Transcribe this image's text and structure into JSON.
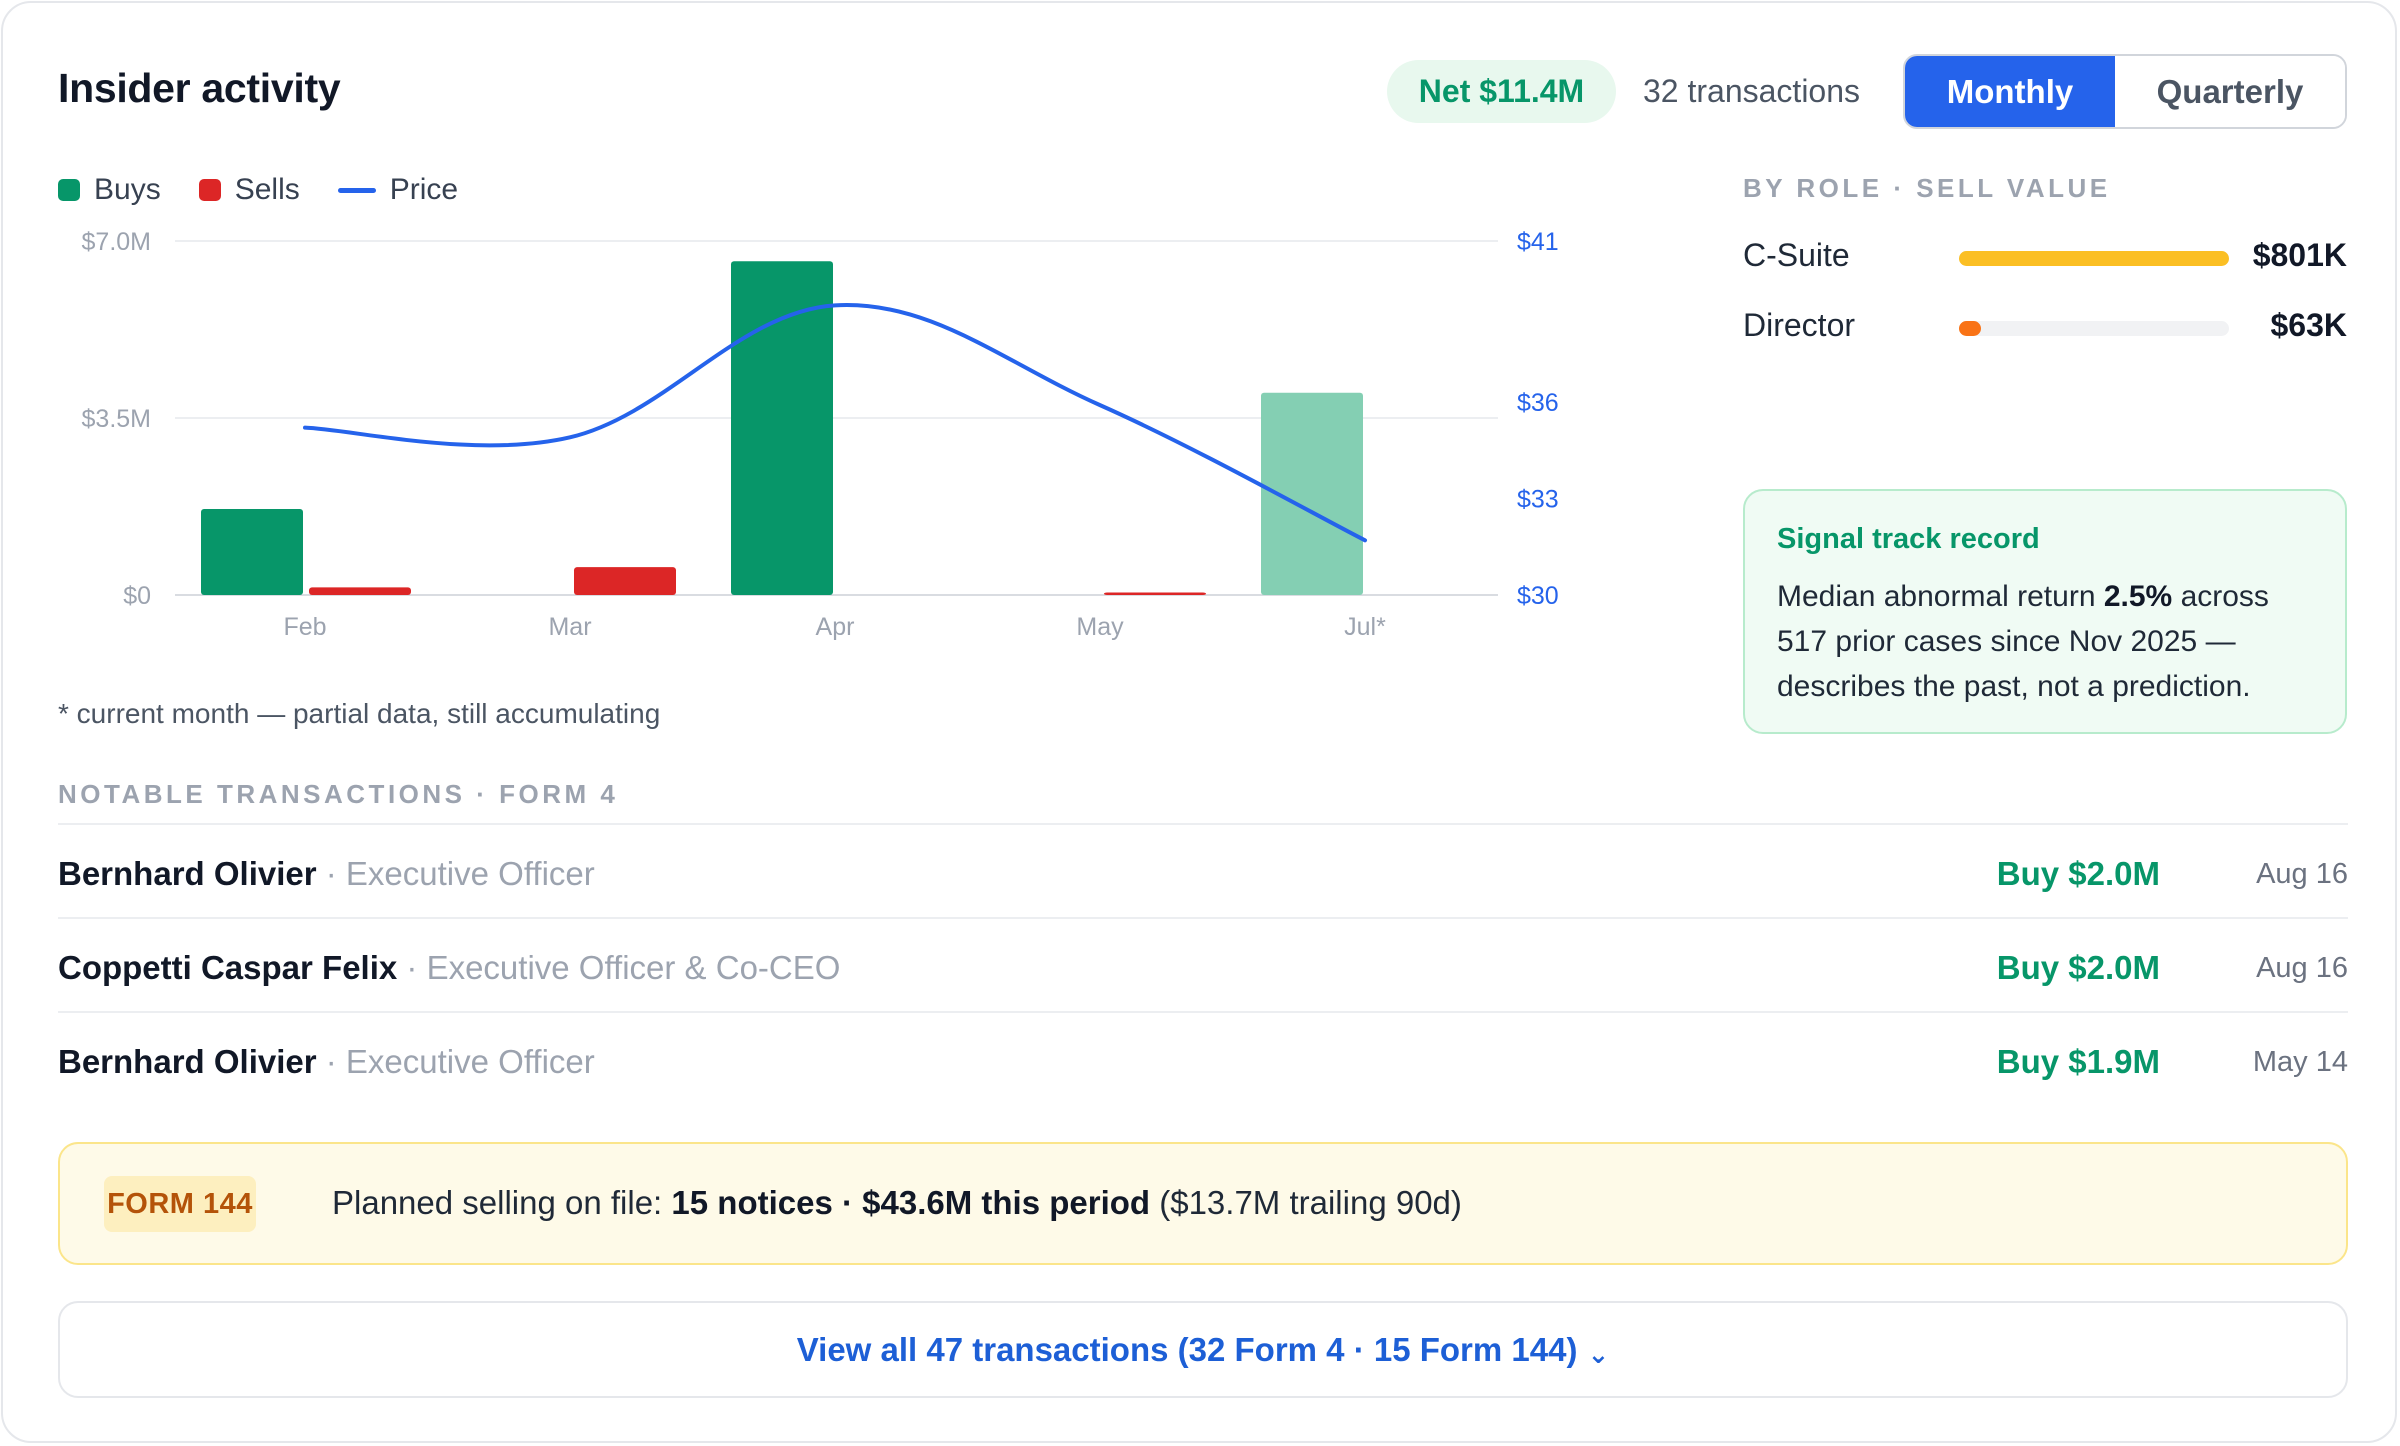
{
  "header": {
    "title": "Insider activity",
    "net_badge": "Net $11.4M",
    "transactions_count": "32 transactions",
    "period_toggle": {
      "options": [
        "Monthly",
        "Quarterly"
      ],
      "selected": "Monthly"
    }
  },
  "legend": {
    "buys": "Buys",
    "sells": "Sells",
    "price": "Price"
  },
  "colors": {
    "buys": "#079669",
    "buys_partial": "#84cfb3",
    "sells": "#dc2626",
    "price": "#2563eb",
    "accent": "#2563eb",
    "positive": "#079669"
  },
  "chart_data": {
    "type": "bar",
    "categories": [
      "Feb",
      "Mar",
      "Apr",
      "May",
      "Jul*"
    ],
    "series": [
      {
        "name": "Buys",
        "values": [
          1.7,
          0,
          6.6,
          0,
          4.0
        ]
      },
      {
        "name": "Sells",
        "values": [
          0.15,
          0.55,
          0,
          0.05,
          0
        ]
      }
    ],
    "price_series": {
      "name": "Price",
      "values": [
        35.2,
        34.9,
        39.0,
        35.9,
        31.7
      ]
    },
    "y_left": {
      "ticks": [
        "$7.0M",
        "$3.5M",
        "$0"
      ],
      "ylim": [
        0,
        7
      ]
    },
    "y_right": {
      "ticks": [
        "$41",
        "$36",
        "$33",
        "$30"
      ],
      "tick_values": [
        41,
        36,
        33,
        30
      ],
      "ylim": [
        30,
        41
      ]
    },
    "partial_category": "Jul*",
    "grid": true,
    "legend_position": "top-left"
  },
  "footnote": "* current month — partial data, still accumulating",
  "by_role": {
    "header": "BY ROLE · SELL VALUE",
    "items": [
      {
        "label": "C-Suite",
        "value": "$801K",
        "fraction": 1.0,
        "color": "#fbbf24"
      },
      {
        "label": "Director",
        "value": "$63K",
        "fraction": 0.08,
        "color": "#f97316"
      }
    ]
  },
  "signal": {
    "title": "Signal track record",
    "body_pre": "Median abnormal return ",
    "body_bold": "2.5%",
    "body_post": " across 517 prior cases since Nov 2025 — describes the past, not a prediction."
  },
  "notable": {
    "header": "NOTABLE TRANSACTIONS · FORM 4",
    "rows": [
      {
        "name": "Bernhard Olivier",
        "role": "Executive Officer",
        "amount": "Buy $2.0M",
        "date": "Aug 16"
      },
      {
        "name": "Coppetti Caspar Felix",
        "role": "Executive Officer & Co-CEO",
        "amount": "Buy $2.0M",
        "date": "Aug 16"
      },
      {
        "name": "Bernhard Olivier",
        "role": "Executive Officer",
        "amount": "Buy $1.9M",
        "date": "May 14"
      }
    ]
  },
  "form144": {
    "tag": "FORM 144",
    "text_pre": "Planned selling on file: ",
    "text_bold": "15 notices · $43.6M this period",
    "text_post": " ($13.7M trailing 90d)"
  },
  "view_all": {
    "label": "View all 47 transactions (32 Form 4 · 15 Form 144)",
    "icon": "chevron-down-icon"
  }
}
